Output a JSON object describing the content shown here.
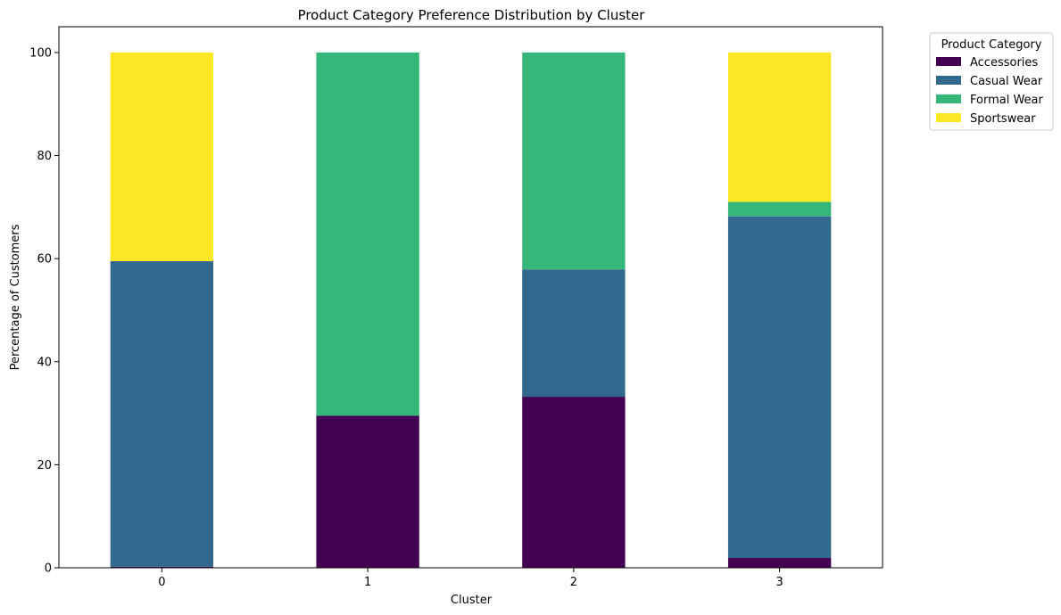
{
  "chart_data": {
    "type": "bar",
    "stacked": true,
    "title": "Product Category Preference Distribution by Cluster",
    "xlabel": "Cluster",
    "ylabel": "Percentage of Customers",
    "categories": [
      "0",
      "1",
      "2",
      "3"
    ],
    "ylim": [
      0,
      105
    ],
    "yticks": [
      0,
      20,
      40,
      60,
      80,
      100
    ],
    "grid": false,
    "legend": {
      "title": "Product Category",
      "placement": "outside-top-right"
    },
    "series": [
      {
        "name": "Accessories",
        "color": "#440154",
        "values": [
          0.2,
          29.5,
          33.2,
          1.9
        ]
      },
      {
        "name": "Casual Wear",
        "color": "#31688e",
        "values": [
          59.3,
          0.0,
          24.7,
          66.3
        ]
      },
      {
        "name": "Formal Wear",
        "color": "#35b779",
        "values": [
          0.0,
          70.5,
          42.1,
          2.8
        ]
      },
      {
        "name": "Sportswear",
        "color": "#fde725",
        "values": [
          40.5,
          0.0,
          0.0,
          29.0
        ]
      }
    ]
  }
}
